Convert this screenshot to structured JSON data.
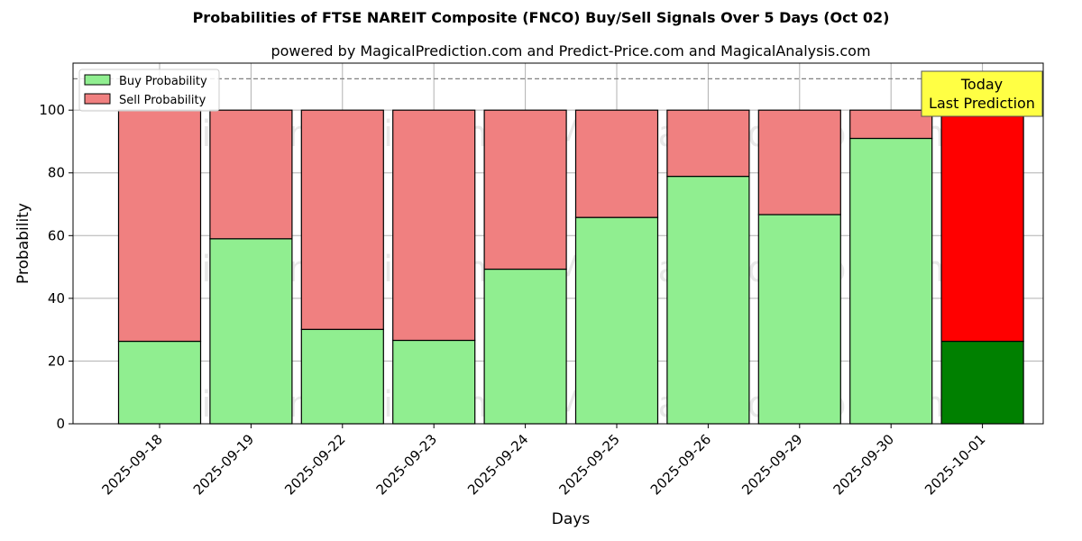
{
  "chart_data": {
    "type": "bar",
    "stacked": true,
    "title": "Probabilities of FTSE NAREIT Composite (FNCO) Buy/Sell Signals Over 5 Days (Oct 02)",
    "subtitle": "powered by MagicalPrediction.com and Predict-Price.com and MagicalAnalysis.com",
    "xlabel": "Days",
    "ylabel": "Probability",
    "ylim": [
      0,
      115
    ],
    "yticks": [
      0,
      20,
      40,
      60,
      80,
      100
    ],
    "grid": true,
    "legend_position": "top-left",
    "categories": [
      "2025-09-18",
      "2025-09-19",
      "2025-09-22",
      "2025-09-23",
      "2025-09-24",
      "2025-09-25",
      "2025-09-26",
      "2025-09-29",
      "2025-09-30",
      "2025-10-01"
    ],
    "series": [
      {
        "name": "Buy Probability",
        "values": [
          26.3,
          59.0,
          30.1,
          26.6,
          49.3,
          65.8,
          78.9,
          66.7,
          91.0,
          26.3
        ],
        "color": "#90ee90",
        "last_color": "#008000"
      },
      {
        "name": "Sell Probability",
        "values": [
          73.7,
          41.0,
          69.9,
          73.4,
          50.7,
          34.2,
          21.1,
          33.3,
          9.0,
          73.7
        ],
        "color": "#f08080",
        "last_color": "#ff0000"
      }
    ],
    "reference_line": {
      "y": 110,
      "style": "dashed",
      "color": "#808080"
    },
    "annotation": {
      "lines": [
        "Today",
        "Last Prediction"
      ],
      "background": "#ffff44"
    },
    "watermarks": [
      "MagicalAnalysis.com",
      "MagicalPrediction.com"
    ]
  }
}
